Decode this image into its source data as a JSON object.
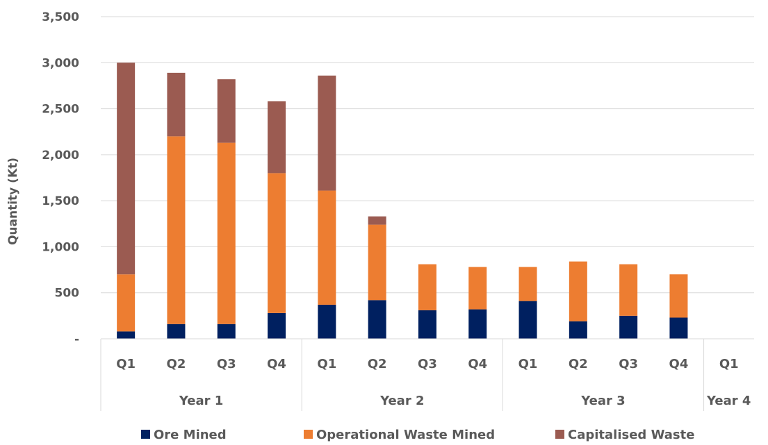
{
  "chart_data": {
    "type": "bar",
    "stacked": true,
    "ylabel": "Quantity (Kt)",
    "ylim": [
      0,
      3500
    ],
    "yticks": [
      0,
      500,
      1000,
      1500,
      2000,
      2500,
      3000,
      3500
    ],
    "ytick_labels": [
      "-",
      "500",
      "1,000",
      "1,500",
      "2,000",
      "2,500",
      "3,000",
      "3,500"
    ],
    "grid": true,
    "legend_position": "bottom",
    "categories": [
      "Q1",
      "Q2",
      "Q3",
      "Q4",
      "Q1",
      "Q2",
      "Q3",
      "Q4",
      "Q1",
      "Q2",
      "Q3",
      "Q4",
      "Q1"
    ],
    "groups": [
      {
        "label": "Year 1",
        "count": 4
      },
      {
        "label": "Year 2",
        "count": 4
      },
      {
        "label": "Year 3",
        "count": 4
      },
      {
        "label": "Year 4",
        "count": 1
      }
    ],
    "series": [
      {
        "name": "Ore Mined",
        "color": "#002060",
        "values": [
          80,
          160,
          160,
          280,
          370,
          420,
          310,
          320,
          410,
          190,
          250,
          230,
          0
        ]
      },
      {
        "name": "Operational Waste Mined",
        "color": "#ED7D31",
        "values": [
          620,
          2040,
          1970,
          1520,
          1240,
          820,
          500,
          460,
          370,
          650,
          560,
          470,
          0
        ]
      },
      {
        "name": "Capitalised Waste",
        "color": "#9B5B51",
        "values": [
          2300,
          690,
          690,
          780,
          1250,
          90,
          0,
          0,
          0,
          0,
          0,
          0,
          0
        ]
      }
    ]
  }
}
